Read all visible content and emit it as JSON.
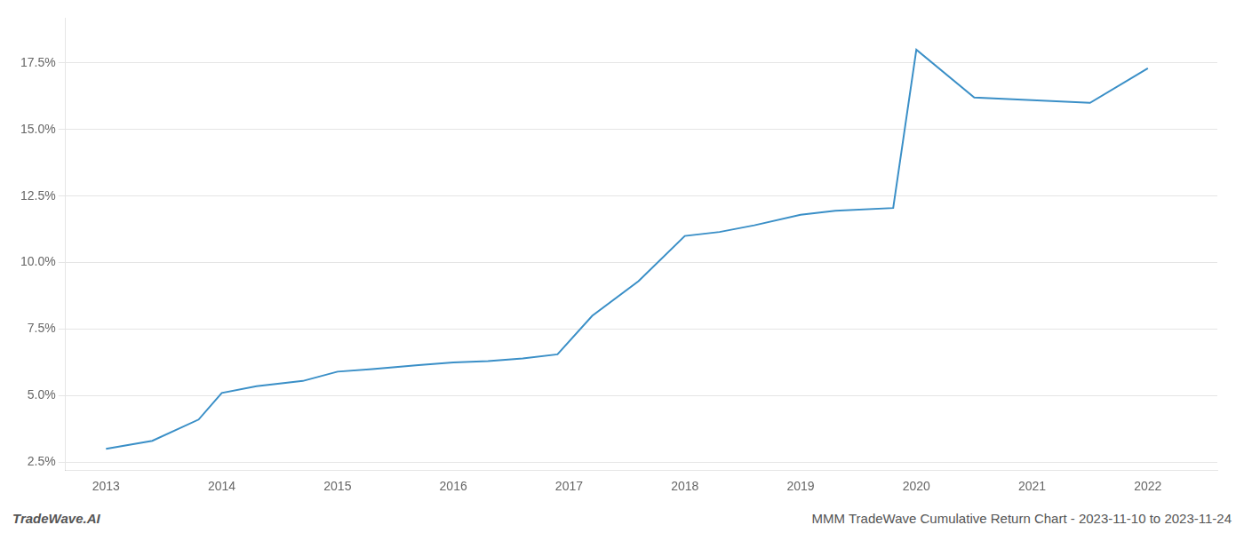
{
  "chart_data": {
    "type": "line",
    "x": [
      2013,
      2013.4,
      2013.8,
      2014,
      2014.3,
      2014.7,
      2015,
      2015.3,
      2015.7,
      2016,
      2016.3,
      2016.6,
      2016.9,
      2017.2,
      2017.6,
      2018,
      2018.3,
      2018.6,
      2019,
      2019.3,
      2019.8,
      2020,
      2020.5,
      2021,
      2021.5,
      2022
    ],
    "values": [
      3.0,
      3.3,
      4.1,
      5.1,
      5.35,
      5.55,
      5.9,
      6.0,
      6.15,
      6.25,
      6.3,
      6.4,
      6.55,
      8.0,
      9.3,
      11.0,
      11.15,
      11.4,
      11.8,
      11.95,
      12.05,
      18.0,
      16.2,
      16.1,
      16.0,
      17.3
    ],
    "color": "#3a8fc7",
    "xlim": [
      2012.65,
      2022.6
    ],
    "ylim": [
      2.2,
      19.2
    ],
    "xticks": [
      2013,
      2014,
      2015,
      2016,
      2017,
      2018,
      2019,
      2020,
      2021,
      2022
    ],
    "yticks": [
      {
        "value": 2.5,
        "label": "2.5%"
      },
      {
        "value": 5.0,
        "label": "5.0%"
      },
      {
        "value": 7.5,
        "label": "7.5%"
      },
      {
        "value": 10.0,
        "label": "10.0%"
      },
      {
        "value": 12.5,
        "label": "12.5%"
      },
      {
        "value": 15.0,
        "label": "15.0%"
      },
      {
        "value": 17.5,
        "label": "17.5%"
      }
    ],
    "grid": "y",
    "annotations": [
      "TradeWave.AI",
      "MMM TradeWave Cumulative Return Chart - 2023-11-10 to 2023-11-24"
    ]
  }
}
